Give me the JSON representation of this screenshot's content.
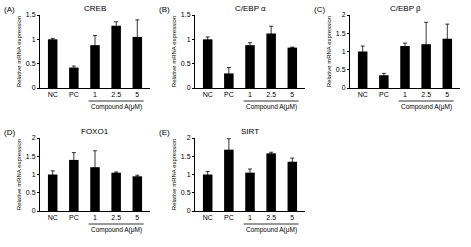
{
  "chart_data": [
    {
      "type": "bar",
      "panel_label": "(A)",
      "title": "CREB",
      "ylabel": "Relative mRNA expression",
      "categories": [
        "NC",
        "PC",
        "1",
        "2.5",
        "5"
      ],
      "values": [
        1.0,
        0.42,
        0.88,
        1.28,
        1.05
      ],
      "errors": [
        0.02,
        0.03,
        0.2,
        0.08,
        0.35
      ],
      "group_label": "Compound A(μM)",
      "group_categories": [
        "1",
        "2.5",
        "5"
      ],
      "color": "#000000",
      "ylim": [
        0,
        1.5
      ],
      "yticks": [
        0,
        0.5,
        1,
        1.5
      ],
      "grid": false
    },
    {
      "type": "bar",
      "panel_label": "(B)",
      "title": "C/EBP α",
      "ylabel": "Relative mRNA expression",
      "categories": [
        "NC",
        "PC",
        "1",
        "2.5",
        "5"
      ],
      "values": [
        1.0,
        0.3,
        0.88,
        1.12,
        0.83
      ],
      "errors": [
        0.05,
        0.12,
        0.05,
        0.15,
        0.01
      ],
      "group_label": "Compound A(μM)",
      "group_categories": [
        "1",
        "2.5",
        "5"
      ],
      "color": "#000000",
      "ylim": [
        0,
        1.5
      ],
      "yticks": [
        0,
        0.5,
        1,
        1.5
      ],
      "grid": false
    },
    {
      "type": "bar",
      "panel_label": "(C)",
      "title": "C/EBP β",
      "ylabel": "Relative mRNA expression",
      "categories": [
        "NC",
        "PC",
        "1",
        "2.5",
        "5"
      ],
      "values": [
        1.0,
        0.35,
        1.15,
        1.2,
        1.35
      ],
      "errors": [
        0.15,
        0.05,
        0.08,
        0.6,
        0.4
      ],
      "group_label": "Compound A(μM)",
      "group_categories": [
        "1",
        "2.5",
        "5"
      ],
      "color": "#000000",
      "ylim": [
        0,
        2
      ],
      "yticks": [
        0,
        0.5,
        1,
        1.5,
        2
      ],
      "grid": false
    },
    {
      "type": "bar",
      "panel_label": "(D)",
      "title": "FOXO1",
      "ylabel": "Relative mRNA expression",
      "categories": [
        "NC",
        "PC",
        "1",
        "2.5",
        "5"
      ],
      "values": [
        1.0,
        1.4,
        1.2,
        1.05,
        0.95
      ],
      "errors": [
        0.1,
        0.2,
        0.45,
        0.02,
        0.03
      ],
      "group_label": "Compound A(μM)",
      "group_categories": [
        "1",
        "2.5",
        "5"
      ],
      "color": "#000000",
      "ylim": [
        0,
        2
      ],
      "yticks": [
        0,
        0.5,
        1,
        1.5,
        2
      ],
      "grid": false
    },
    {
      "type": "bar",
      "panel_label": "(E)",
      "title": "SIRT",
      "ylabel": "Relative mRNA expression",
      "categories": [
        "NC",
        "PC",
        "1",
        "2.5",
        "5"
      ],
      "values": [
        1.0,
        1.68,
        1.05,
        1.58,
        1.35
      ],
      "errors": [
        0.08,
        0.3,
        0.1,
        0.03,
        0.1
      ],
      "group_label": "Compound A(μM)",
      "group_categories": [
        "1",
        "2.5",
        "5"
      ],
      "color": "#000000",
      "ylim": [
        0,
        2
      ],
      "yticks": [
        0,
        0.5,
        1,
        1.5,
        2
      ],
      "grid": false
    }
  ]
}
